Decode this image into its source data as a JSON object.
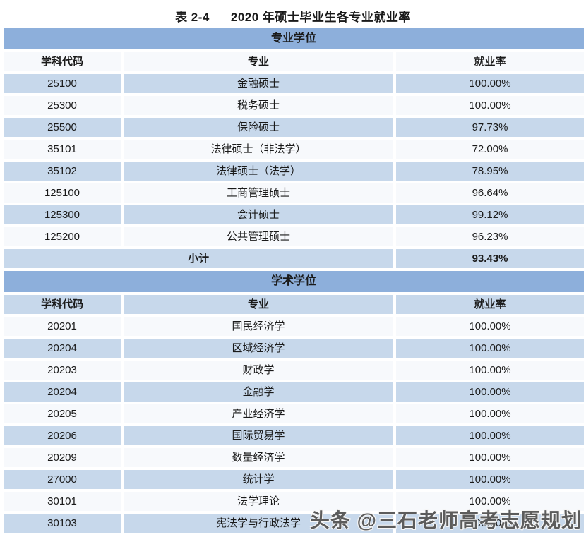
{
  "title": {
    "label": "表 2-4",
    "text": "2020 年硕士毕业生各专业就业率"
  },
  "table": {
    "columns": [
      "学科代码",
      "专业",
      "就业率"
    ],
    "sections": [
      {
        "band": "专业学位",
        "header_shaded": false,
        "first_row_shaded": true,
        "rows": [
          {
            "code": "25100",
            "major": "金融硕士",
            "rate": "100.00%"
          },
          {
            "code": "25300",
            "major": "税务硕士",
            "rate": "100.00%"
          },
          {
            "code": "25500",
            "major": "保险硕士",
            "rate": "97.73%"
          },
          {
            "code": "35101",
            "major": "法律硕士（非法学）",
            "rate": "72.00%"
          },
          {
            "code": "35102",
            "major": "法律硕士（法学）",
            "rate": "78.95%"
          },
          {
            "code": "125100",
            "major": "工商管理硕士",
            "rate": "96.64%"
          },
          {
            "code": "125300",
            "major": "会计硕士",
            "rate": "99.12%"
          },
          {
            "code": "125200",
            "major": "公共管理硕士",
            "rate": "96.23%"
          }
        ],
        "subtotal": {
          "label": "小计",
          "rate": "93.43%"
        }
      },
      {
        "band": "学术学位",
        "header_shaded": true,
        "first_row_shaded": false,
        "rows": [
          {
            "code": "20201",
            "major": "国民经济学",
            "rate": "100.00%"
          },
          {
            "code": "20204",
            "major": "区域经济学",
            "rate": "100.00%"
          },
          {
            "code": "20203",
            "major": "财政学",
            "rate": "100.00%"
          },
          {
            "code": "20204",
            "major": "金融学",
            "rate": "100.00%"
          },
          {
            "code": "20205",
            "major": "产业经济学",
            "rate": "100.00%"
          },
          {
            "code": "20206",
            "major": "国际贸易学",
            "rate": "100.00%"
          },
          {
            "code": "20209",
            "major": "数量经济学",
            "rate": "100.00%"
          },
          {
            "code": "27000",
            "major": "统计学",
            "rate": "100.00%"
          },
          {
            "code": "30101",
            "major": "法学理论",
            "rate": "100.00%"
          },
          {
            "code": "30103",
            "major": "宪法学与行政法学",
            "rate": "100.00%"
          }
        ]
      }
    ]
  },
  "watermark": "头条 @三石老师高考志愿规划",
  "colors": {
    "band_blue": "#8DAFDB",
    "shaded_row": "#C7D8EB",
    "light_row": "#F7F9FC",
    "text": "#1a1a1a",
    "watermark_gray": "#5c5c5c"
  }
}
